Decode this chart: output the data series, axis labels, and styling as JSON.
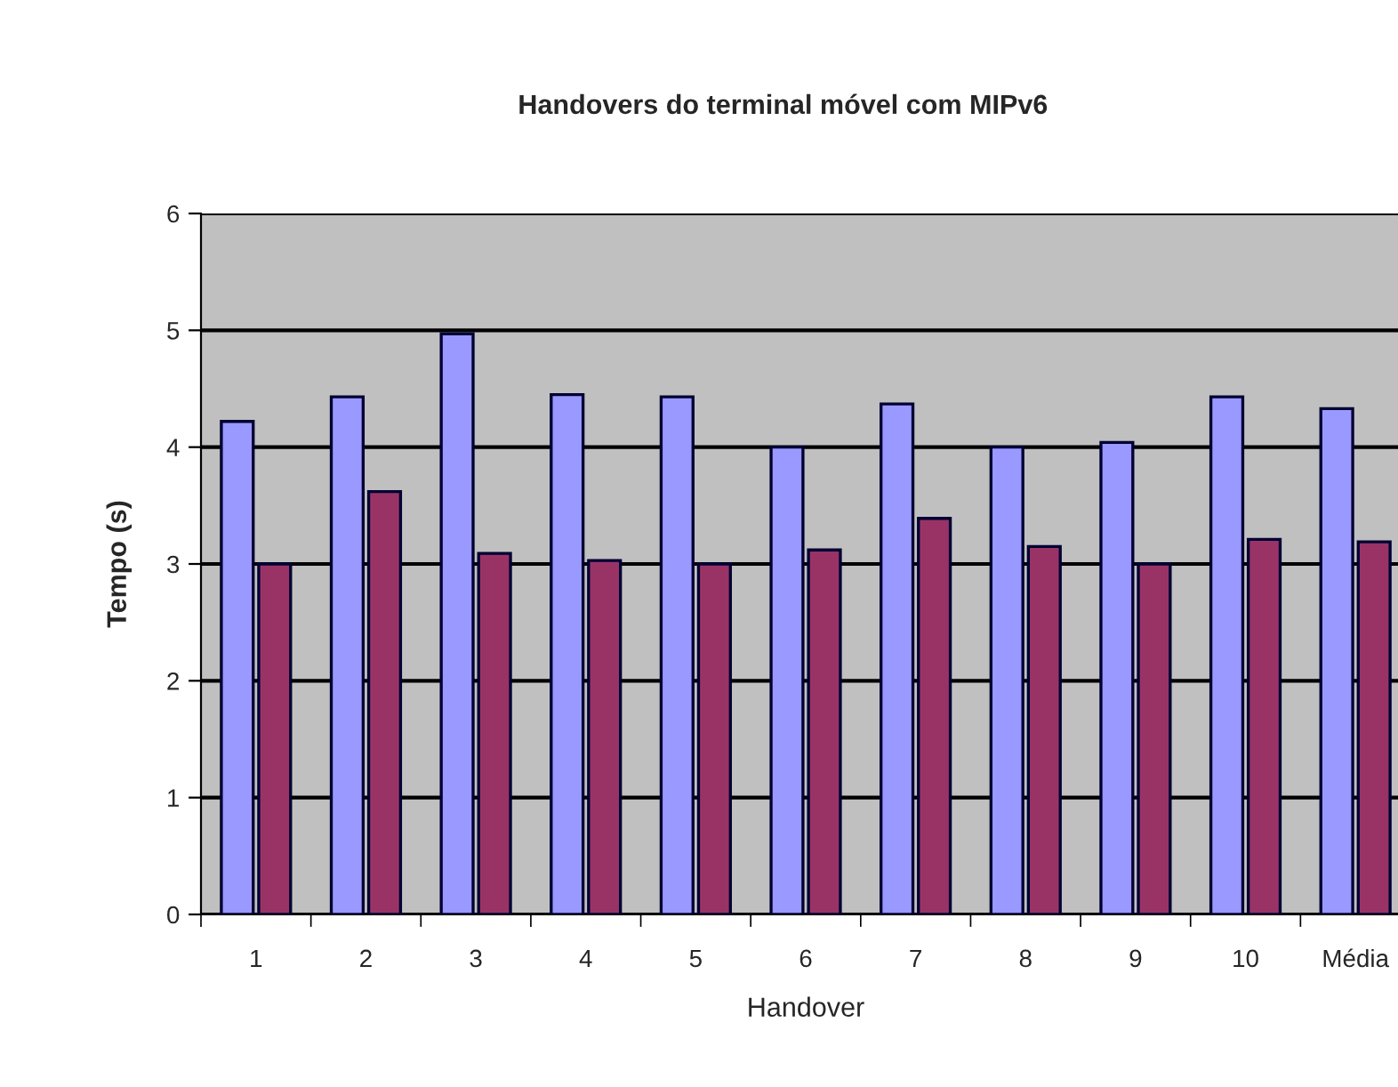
{
  "chart_data": {
    "type": "bar",
    "title": "Handovers do terminal móvel com MIPv6",
    "xlabel": "Handover",
    "ylabel": "Tempo (s)",
    "categories": [
      "1",
      "2",
      "3",
      "4",
      "5",
      "6",
      "7",
      "8",
      "9",
      "10",
      "Média"
    ],
    "series": [
      {
        "color": "#9999ff",
        "values": [
          4.22,
          4.43,
          4.97,
          4.45,
          4.43,
          4.0,
          4.37,
          4.0,
          4.04,
          4.43,
          4.33
        ]
      },
      {
        "color": "#993366",
        "values": [
          3.0,
          3.62,
          3.09,
          3.03,
          3.0,
          3.12,
          3.39,
          3.15,
          3.0,
          3.21,
          3.19
        ]
      }
    ],
    "ylim": [
      0,
      6
    ],
    "yticks": [
      0,
      1,
      2,
      3,
      4,
      5,
      6
    ],
    "grid": "y",
    "legend": false
  }
}
